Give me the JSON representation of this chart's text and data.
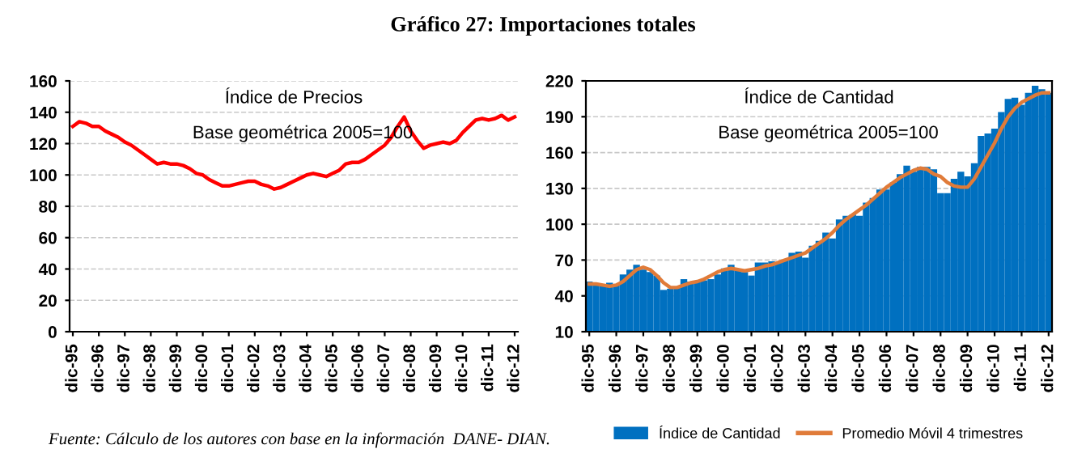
{
  "chart_data": [
    {
      "type": "line",
      "title": "Gráfico 27: Importaciones totales",
      "categories": [
        "dic-95",
        null,
        null,
        null,
        "dic-96",
        null,
        null,
        null,
        "dic-97",
        null,
        null,
        null,
        "dic-98",
        null,
        null,
        null,
        "dic-99",
        null,
        null,
        null,
        "dic-00",
        null,
        null,
        null,
        "dic-01",
        null,
        null,
        null,
        "dic-02",
        null,
        null,
        null,
        "dic-03",
        null,
        null,
        null,
        "dic-04",
        null,
        null,
        null,
        "dic-05",
        null,
        null,
        null,
        "dic-06",
        null,
        null,
        null,
        "dic-07",
        null,
        null,
        null,
        "dic-08",
        null,
        null,
        null,
        "dic-09",
        null,
        null,
        null,
        "dic-10",
        null,
        null,
        null,
        "dic-11",
        null,
        null,
        null,
        "dic-12"
      ],
      "series": [
        {
          "color": "#ff0000",
          "values": [
            131,
            134,
            133,
            131,
            131,
            128,
            126,
            124,
            121,
            119,
            116,
            113,
            110,
            107,
            108,
            107,
            107,
            106,
            104,
            101,
            100,
            97,
            95,
            93,
            93,
            94,
            95,
            96,
            96,
            94,
            93,
            91,
            92,
            94,
            96,
            98,
            100,
            101,
            100,
            99,
            101,
            103,
            107,
            108,
            108,
            110,
            113,
            116,
            119,
            124,
            131,
            137,
            128,
            122,
            117,
            119,
            120,
            121,
            120,
            122,
            127,
            131,
            135,
            136,
            135,
            136,
            138,
            135,
            137
          ]
        }
      ],
      "ylim": [
        0,
        160
      ],
      "yticks": [
        0,
        20,
        40,
        60,
        80,
        100,
        120,
        140,
        160
      ],
      "grid": "y",
      "legend": false,
      "marker": "none",
      "line_style": "solid",
      "annotations": [
        "Índice de Precios",
        "Base geométrica 2005=100",
        "Fuente: Cálculo de los autores con base en la información  DANE- DIAN."
      ]
    },
    {
      "type": "bar",
      "categories": [
        "dic-95",
        null,
        null,
        null,
        "dic-96",
        null,
        null,
        null,
        "dic-97",
        null,
        null,
        null,
        "dic-98",
        null,
        null,
        null,
        "dic-99",
        null,
        null,
        null,
        "dic-00",
        null,
        null,
        null,
        "dic-01",
        null,
        null,
        null,
        "dic-02",
        null,
        null,
        null,
        "dic-03",
        null,
        null,
        null,
        "dic-04",
        null,
        null,
        null,
        "dic-05",
        null,
        null,
        null,
        "dic-06",
        null,
        null,
        null,
        "dic-07",
        null,
        null,
        null,
        "dic-08",
        null,
        null,
        null,
        "dic-09",
        null,
        null,
        null,
        "dic-10",
        null,
        null,
        null,
        "dic-11",
        null,
        null,
        null,
        "dic-12"
      ],
      "series": [
        {
          "name": "Índice de Cantidad",
          "type": "bar",
          "color": "#0070c0",
          "values": [
            52,
            49,
            49,
            51,
            50,
            58,
            62,
            66,
            62,
            60,
            57,
            45,
            46,
            47,
            54,
            52,
            52,
            53,
            54,
            58,
            63,
            66,
            62,
            60,
            57,
            68,
            68,
            69,
            68,
            70,
            76,
            77,
            72,
            82,
            86,
            93,
            88,
            104,
            107,
            108,
            107,
            118,
            122,
            129,
            129,
            135,
            142,
            149,
            144,
            148,
            148,
            146,
            126,
            126,
            138,
            144,
            140,
            151,
            174,
            176,
            180,
            194,
            205,
            206,
            200,
            210,
            216,
            213,
            210
          ]
        },
        {
          "name": "Promedio Móvil 4 trimestres",
          "type": "line",
          "color": "#e07b39",
          "values": [
            50,
            50,
            49,
            48,
            49,
            52,
            57,
            62,
            64,
            62,
            57,
            51,
            47,
            47,
            49,
            51,
            52,
            54,
            57,
            60,
            62,
            63,
            62,
            61,
            62,
            63,
            65,
            66,
            68,
            70,
            72,
            74,
            76,
            80,
            84,
            88,
            93,
            99,
            104,
            108,
            112,
            116,
            121,
            126,
            131,
            135,
            139,
            142,
            145,
            147,
            146,
            142,
            140,
            135,
            132,
            131,
            131,
            138,
            148,
            158,
            168,
            180,
            190,
            197,
            202,
            205,
            208,
            210,
            210
          ]
        }
      ],
      "ylim": [
        10,
        220
      ],
      "yticks": [
        10,
        40,
        70,
        100,
        130,
        160,
        190,
        220
      ],
      "grid": "y",
      "legend": "bottom",
      "line_style": "solid",
      "annotations": [
        "Índice de Cantidad",
        "Base geométrica 2005=100"
      ]
    }
  ]
}
